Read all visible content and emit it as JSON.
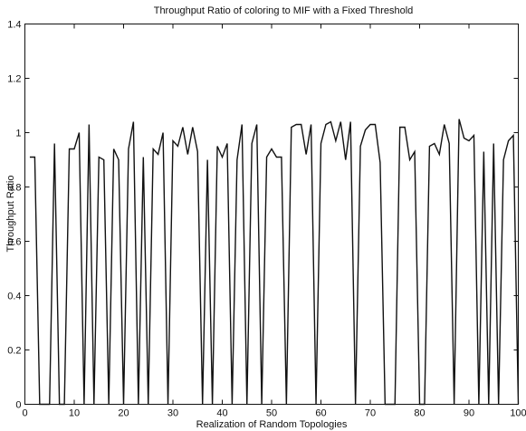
{
  "chart_data": {
    "type": "line",
    "title": "Throughput Ratio of coloring to MIF with a Fixed Threshold",
    "xlabel": "Realization of Random Topologies",
    "ylabel": "Throughput Ratio",
    "xlim": [
      0,
      100
    ],
    "ylim": [
      0,
      1.4
    ],
    "xticks": [
      0,
      10,
      20,
      30,
      40,
      50,
      60,
      70,
      80,
      90,
      100
    ],
    "yticks": [
      0,
      0.2,
      0.4,
      0.6,
      0.8,
      1,
      1.2,
      1.4
    ],
    "xtick_labels": [
      "0",
      "10",
      "20",
      "30",
      "40",
      "50",
      "60",
      "70",
      "80",
      "90",
      "100"
    ],
    "ytick_labels": [
      "0",
      "0.2",
      "0.4",
      "0.6",
      "0.8",
      "1",
      "1.2",
      "1.4"
    ],
    "grid": false,
    "legend": "none",
    "series": [
      {
        "x": [
          1,
          2,
          3,
          4,
          5,
          6,
          7,
          8,
          9,
          10,
          11,
          12,
          13,
          14,
          15,
          16,
          17,
          18,
          19,
          20,
          21,
          22,
          23,
          24,
          25,
          26,
          27,
          28,
          29,
          30,
          31,
          32,
          33,
          34,
          35,
          36,
          37,
          38,
          39,
          40,
          41,
          42,
          43,
          44,
          45,
          46,
          47,
          48,
          49,
          50,
          51,
          52,
          53,
          54,
          55,
          56,
          57,
          58,
          59,
          60,
          61,
          62,
          63,
          64,
          65,
          66,
          67,
          68,
          69,
          70,
          71,
          72,
          73,
          74,
          75,
          76,
          77,
          78,
          79,
          80,
          81,
          82,
          83,
          84,
          85,
          86,
          87,
          88,
          89,
          90,
          91,
          92,
          93,
          94,
          95,
          96,
          97,
          98,
          99,
          100
        ],
        "y": [
          0.91,
          0.91,
          0,
          0,
          0,
          0.96,
          0,
          0,
          0.94,
          0.94,
          1.0,
          0,
          1.03,
          0,
          0.91,
          0.9,
          0,
          0.94,
          0.9,
          0,
          0.94,
          1.04,
          0,
          0.91,
          0,
          0.94,
          0.92,
          1.0,
          0,
          0.97,
          0.95,
          1.02,
          0.92,
          1.02,
          0.93,
          0,
          0.9,
          0,
          0.95,
          0.91,
          0.96,
          0,
          0.9,
          1.03,
          0,
          0.96,
          1.03,
          0,
          0.91,
          0.94,
          0.91,
          0.91,
          0,
          1.02,
          1.03,
          1.03,
          0.92,
          1.03,
          0,
          0.96,
          1.03,
          1.04,
          0.97,
          1.04,
          0.9,
          1.04,
          0,
          0.95,
          1.01,
          1.03,
          1.03,
          0.89,
          0,
          0,
          0,
          1.02,
          1.02,
          0.9,
          0.93,
          0,
          0,
          0.95,
          0.96,
          0.92,
          1.03,
          0.96,
          0,
          1.05,
          0.98,
          0.97,
          0.99,
          0,
          0.93,
          0,
          0.96,
          0,
          0.9,
          0.97,
          0.99,
          0
        ]
      }
    ]
  }
}
